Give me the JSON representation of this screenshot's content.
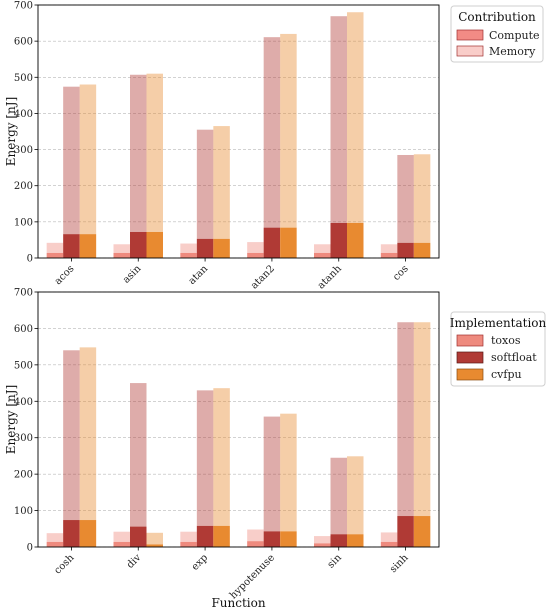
{
  "chart_data": [
    {
      "type": "bar",
      "stacked_grouped": true,
      "categories": [
        "acos",
        "asin",
        "atan",
        "atan2",
        "atanh",
        "cos"
      ],
      "ylabel": "Energy [nJ]",
      "xlabel": "",
      "ylim": [
        0,
        700
      ],
      "yticks": [
        0,
        100,
        200,
        300,
        400,
        500,
        600,
        700
      ],
      "grid": "y-dashed",
      "series": [
        {
          "name": "toxos",
          "compute": [
            14,
            14,
            14,
            14,
            14,
            14
          ],
          "memory": [
            28,
            24,
            26,
            30,
            24,
            24
          ]
        },
        {
          "name": "softfloat",
          "compute": [
            66,
            72,
            53,
            84,
            97,
            42
          ],
          "memory": [
            408,
            435,
            302,
            527,
            572,
            243
          ]
        },
        {
          "name": "cvfpu",
          "compute": [
            66,
            72,
            53,
            84,
            97,
            42
          ],
          "memory": [
            414,
            438,
            312,
            536,
            583,
            245
          ]
        }
      ],
      "legend": {
        "title": "Contribution",
        "position": "outside-top-right",
        "entries": [
          "Compute",
          "Memory"
        ]
      }
    },
    {
      "type": "bar",
      "stacked_grouped": true,
      "categories": [
        "cosh",
        "div",
        "exp",
        "hypotenuse",
        "sin",
        "sinh"
      ],
      "ylabel": "Energy [nJ]",
      "xlabel": "Function",
      "ylim": [
        0,
        700
      ],
      "yticks": [
        0,
        100,
        200,
        300,
        400,
        500,
        600,
        700
      ],
      "grid": "y-dashed",
      "series": [
        {
          "name": "toxos",
          "compute": [
            14,
            14,
            14,
            16,
            10,
            14
          ],
          "memory": [
            24,
            28,
            28,
            32,
            20,
            26
          ]
        },
        {
          "name": "softfloat",
          "compute": [
            74,
            56,
            58,
            43,
            35,
            85
          ],
          "memory": [
            466,
            394,
            372,
            315,
            210,
            532
          ]
        },
        {
          "name": "cvfpu",
          "compute": [
            74,
            7,
            58,
            43,
            35,
            85
          ],
          "memory": [
            474,
            32,
            378,
            323,
            214,
            532
          ]
        }
      ],
      "legend": {
        "title": "Implementation",
        "position": "outside-right",
        "entries": [
          "toxos",
          "softfloat",
          "cvfpu"
        ]
      }
    }
  ],
  "colors": {
    "toxos": "#ee8a7e",
    "softfloat": "#b03a35",
    "cvfpu": "#e88a30",
    "compute_legend": "#f28b85",
    "memory_legend": "#f9cdc9"
  }
}
